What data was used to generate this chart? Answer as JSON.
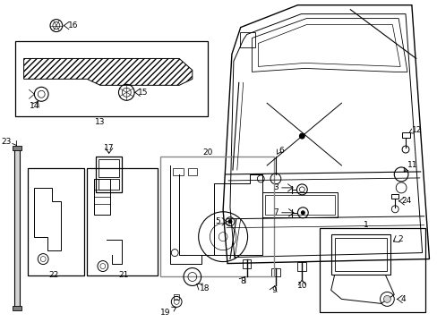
{
  "bg_color": "#ffffff",
  "fig_width": 4.89,
  "fig_height": 3.6,
  "dpi": 100,
  "lc": "black",
  "lw": 0.7
}
